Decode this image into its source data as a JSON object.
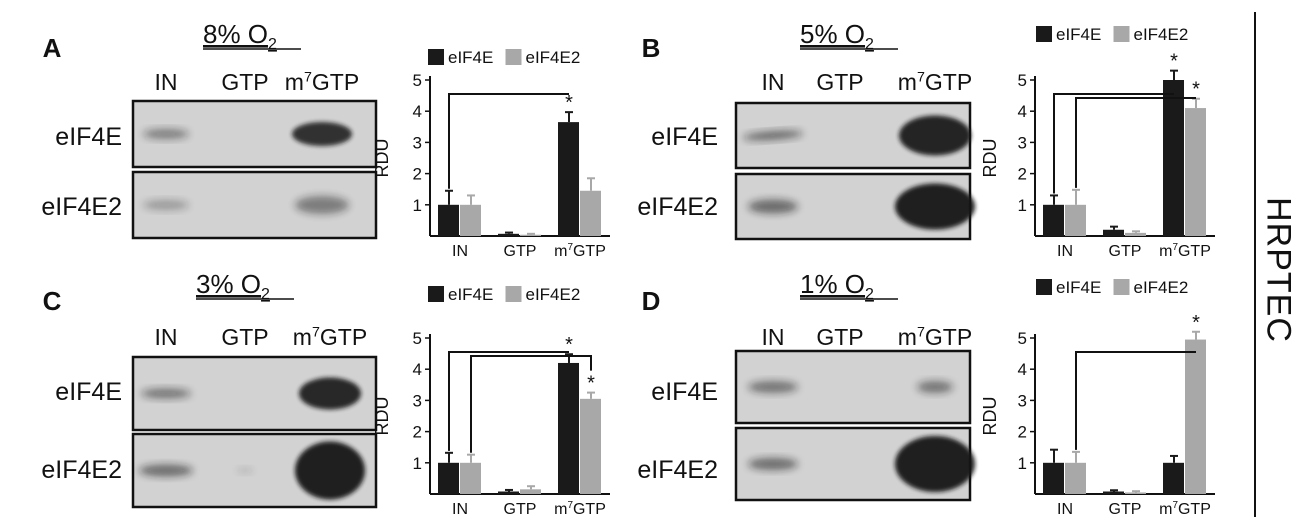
{
  "side_label": "HRPTEC",
  "colors": {
    "eif4e": "#1a1a1a",
    "eif4e2": "#a8a8a8",
    "axis": "#111111",
    "blot_bg": "#d2d2d2"
  },
  "panels": [
    {
      "letter": "A",
      "condition": "8% O",
      "condition_sub": "2",
      "lanes": [
        "IN",
        "GTP",
        "m7GTP"
      ],
      "rows": [
        "eIF4E",
        "eIF4E2"
      ],
      "chart_data": {
        "type": "bar",
        "ylabel": "RDU",
        "ylim": [
          0,
          5
        ],
        "yticks": [
          "1",
          "2",
          "3",
          "4",
          "5"
        ],
        "categories": [
          "IN",
          "GTP",
          "m7GTP"
        ],
        "series": [
          {
            "name": "eIF4E",
            "values": [
              1.0,
              0.07,
              3.65
            ],
            "errors": [
              0.45,
              0.04,
              0.32
            ]
          },
          {
            "name": "eIF4E2",
            "values": [
              1.0,
              0.04,
              1.45
            ],
            "errors": [
              0.3,
              0.03,
              0.4
            ]
          }
        ],
        "significance": [
          {
            "category": "m7GTP",
            "series": "eIF4E",
            "mark": "*"
          }
        ],
        "brackets": [
          {
            "from": "IN",
            "to": "m7GTP"
          }
        ]
      }
    },
    {
      "letter": "B",
      "condition": "5% O",
      "condition_sub": "2",
      "lanes": [
        "IN",
        "GTP",
        "m7GTP"
      ],
      "rows": [
        "eIF4E",
        "eIF4E2"
      ],
      "chart_data": {
        "type": "bar",
        "ylabel": "RDU",
        "ylim": [
          0,
          5
        ],
        "yticks": [
          "1",
          "2",
          "3",
          "4",
          "5"
        ],
        "categories": [
          "IN",
          "GTP",
          "m7GTP"
        ],
        "series": [
          {
            "name": "eIF4E",
            "values": [
              1.0,
              0.2,
              5.0
            ],
            "errors": [
              0.3,
              0.1,
              0.3
            ]
          },
          {
            "name": "eIF4E2",
            "values": [
              1.0,
              0.1,
              4.1
            ],
            "errors": [
              0.48,
              0.05,
              0.3
            ]
          }
        ],
        "significance": [
          {
            "category": "m7GTP",
            "series": "eIF4E",
            "mark": "*"
          },
          {
            "category": "m7GTP",
            "series": "eIF4E2",
            "mark": "*"
          }
        ],
        "brackets": [
          {
            "from": "IN",
            "to": "m7GTP"
          },
          {
            "from": "IN2",
            "to": "m7GTP2"
          }
        ]
      }
    },
    {
      "letter": "C",
      "condition": "3% O",
      "condition_sub": "2",
      "lanes": [
        "IN",
        "GTP",
        "m7GTP"
      ],
      "rows": [
        "eIF4E",
        "eIF4E2"
      ],
      "chart_data": {
        "type": "bar",
        "ylabel": "RDU",
        "ylim": [
          0,
          5
        ],
        "yticks": [
          "1",
          "2",
          "3",
          "4",
          "5"
        ],
        "categories": [
          "IN",
          "GTP",
          "m7GTP"
        ],
        "series": [
          {
            "name": "eIF4E",
            "values": [
              1.0,
              0.08,
              4.2
            ],
            "errors": [
              0.32,
              0.05,
              0.28
            ]
          },
          {
            "name": "eIF4E2",
            "values": [
              1.0,
              0.15,
              3.05
            ],
            "errors": [
              0.26,
              0.1,
              0.2
            ]
          }
        ],
        "significance": [
          {
            "category": "m7GTP",
            "series": "eIF4E",
            "mark": "*"
          },
          {
            "category": "m7GTP",
            "series": "eIF4E2",
            "mark": "*"
          }
        ],
        "brackets": [
          {
            "from": "IN",
            "to": "m7GTP"
          },
          {
            "from": "IN2",
            "to": "m7GTP2"
          }
        ]
      }
    },
    {
      "letter": "D",
      "condition": "1% O",
      "condition_sub": "2",
      "lanes": [
        "IN",
        "GTP",
        "m7GTP"
      ],
      "rows": [
        "eIF4E",
        "eIF4E2"
      ],
      "chart_data": {
        "type": "bar",
        "ylabel": "RDU",
        "ylim": [
          0,
          5
        ],
        "yticks": [
          "1",
          "2",
          "3",
          "4",
          "5"
        ],
        "categories": [
          "IN",
          "GTP",
          "m7GTP"
        ],
        "series": [
          {
            "name": "eIF4E",
            "values": [
              1.0,
              0.08,
              1.0
            ],
            "errors": [
              0.42,
              0.04,
              0.22
            ]
          },
          {
            "name": "eIF4E2",
            "values": [
              1.0,
              0.05,
              4.95
            ],
            "errors": [
              0.35,
              0.04,
              0.25
            ]
          }
        ],
        "significance": [
          {
            "category": "m7GTP",
            "series": "eIF4E2",
            "mark": "*"
          }
        ],
        "brackets": [
          {
            "from": "IN2",
            "to": "m7GTP2"
          }
        ]
      }
    }
  ]
}
